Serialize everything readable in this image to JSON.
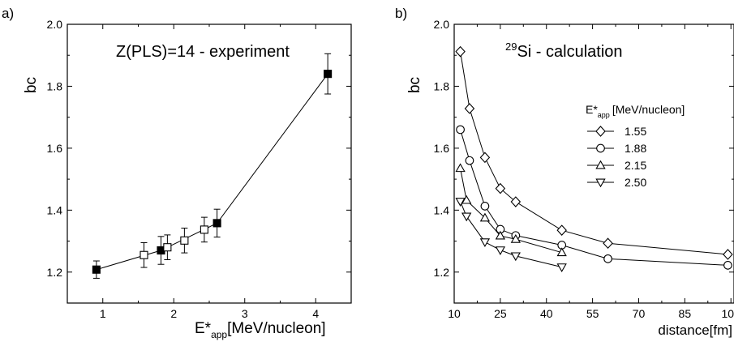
{
  "chart_data": [
    {
      "type": "scatter",
      "panel_label": "a)",
      "title": "Z(PLS)=14 - experiment",
      "xlabel_main": "E*",
      "xlabel_sub": "app",
      "xlabel_rest": "[MeV/nucleon]",
      "ylabel": "bc",
      "xlim": [
        0.5,
        4.5
      ],
      "ylim": [
        1.1,
        2.0
      ],
      "xticks": [
        1,
        2,
        3,
        4
      ],
      "yticks": [
        1.2,
        1.4,
        1.6,
        1.8,
        2.0
      ],
      "ytick_labels": [
        "1.2",
        "1.4",
        "1.6",
        "1.8",
        "2.0"
      ],
      "line_x": [
        0.91,
        1.82,
        2.61,
        4.17
      ],
      "line_y": [
        1.208,
        1.27,
        1.358,
        1.84
      ],
      "series": [
        {
          "marker": "square-filled",
          "x": [
            0.91,
            1.82,
            2.61,
            4.17
          ],
          "y": [
            1.208,
            1.27,
            1.358,
            1.84
          ],
          "err": [
            0.028,
            0.045,
            0.045,
            0.065
          ]
        },
        {
          "marker": "square-open",
          "x": [
            1.58,
            1.91,
            2.15,
            2.43
          ],
          "y": [
            1.255,
            1.28,
            1.302,
            1.337
          ],
          "err": [
            0.04,
            0.04,
            0.04,
            0.04
          ]
        }
      ]
    },
    {
      "type": "line",
      "panel_label": "b)",
      "title_sup": "29",
      "title": "Si - calculation",
      "xlabel": "distance[fm]",
      "ylabel": "bc",
      "xlim": [
        10,
        101
      ],
      "ylim": [
        1.1,
        2.0
      ],
      "xticks": [
        10,
        25,
        40,
        55,
        70,
        85,
        100
      ],
      "yticks": [
        1.2,
        1.4,
        1.6,
        1.8,
        2.0
      ],
      "ytick_labels": [
        "1.2",
        "1.4",
        "1.6",
        "1.8",
        "2.0"
      ],
      "legend_title_main": "E*",
      "legend_title_sub": "app",
      "legend_title_rest": "[MeV/nucleon]",
      "legend_position": "right",
      "series": [
        {
          "name": "1.55",
          "marker": "diamond",
          "x": [
            12,
            15,
            20,
            25,
            30,
            45,
            60,
            99
          ],
          "y": [
            1.912,
            1.728,
            1.57,
            1.47,
            1.427,
            1.335,
            1.293,
            1.257
          ]
        },
        {
          "name": "1.88",
          "marker": "circle",
          "x": [
            12,
            15,
            20,
            25,
            30,
            45,
            60,
            99
          ],
          "y": [
            1.66,
            1.56,
            1.413,
            1.338,
            1.318,
            1.287,
            1.243,
            1.222
          ]
        },
        {
          "name": "2.15",
          "marker": "triangle-up",
          "x": [
            12,
            14,
            20,
            25,
            30,
            45
          ],
          "y": [
            1.535,
            1.432,
            1.375,
            1.317,
            1.306,
            1.263
          ]
        },
        {
          "name": "2.50",
          "marker": "triangle-down",
          "x": [
            12,
            14,
            20,
            25,
            30,
            45
          ],
          "y": [
            1.428,
            1.38,
            1.297,
            1.271,
            1.252,
            1.216
          ]
        }
      ]
    }
  ]
}
